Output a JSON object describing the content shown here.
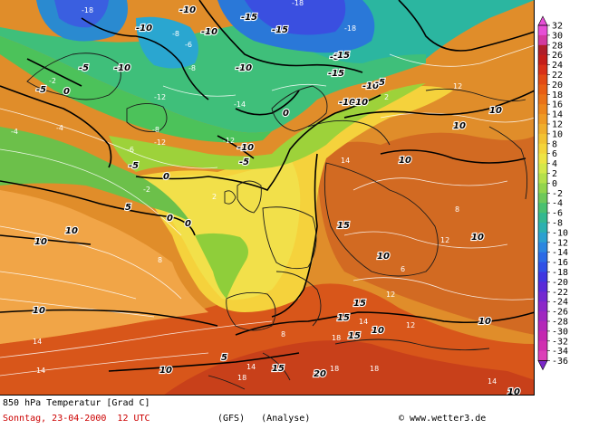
{
  "caption": {
    "title": "850 hPa Temperatur [Grad C]",
    "date": "Sonntag, 23-04-2000  12 UTC",
    "model": "(GFS)   (Analyse)",
    "copyright": "© www.wetter3.de"
  },
  "legend": {
    "ticks": [
      "32",
      "30",
      "28",
      "26",
      "24",
      "22",
      "20",
      "18",
      "16",
      "14",
      "12",
      "10",
      "8",
      "6",
      "4",
      "2",
      "0",
      "-2",
      "-4",
      "-6",
      "-8",
      "-10",
      "-12",
      "-14",
      "-16",
      "-18",
      "-20",
      "-22",
      "-24",
      "-26",
      "-28",
      "-30",
      "-32",
      "-34",
      "-36"
    ]
  },
  "map": {
    "isotherm_labels": [
      "-18",
      "-10",
      "-10",
      "-15",
      "-15",
      "-18",
      "-18",
      "-5",
      "-10",
      "-5",
      "-10",
      "-12",
      "-10",
      "-12",
      "-14",
      "-8",
      "-8",
      "-5",
      "-6",
      "-5",
      "-10",
      "-10",
      "-15",
      "-10",
      "-12",
      "-10",
      "-15",
      "-5",
      "-4",
      "-2",
      "0",
      "0",
      "-8",
      "-6",
      "-5",
      "-4",
      "-2",
      "0",
      "0",
      "0",
      "2",
      "2",
      "5",
      "5",
      "10",
      "10",
      "10",
      "8",
      "10",
      "10",
      "10",
      "10",
      "12",
      "10",
      "14",
      "15",
      "15",
      "14",
      "12",
      "15",
      "14",
      "15",
      "14",
      "10",
      "10",
      "10",
      "18",
      "18",
      "18",
      "20",
      "18",
      "14",
      "8",
      "8",
      "12",
      "10",
      "6",
      "15",
      "12",
      "14"
    ]
  },
  "colors": {
    "zero_line": "#000000",
    "isotherm_bold": "#000000",
    "isotherm_thin": "#ffffff",
    "coast": "#222222"
  }
}
